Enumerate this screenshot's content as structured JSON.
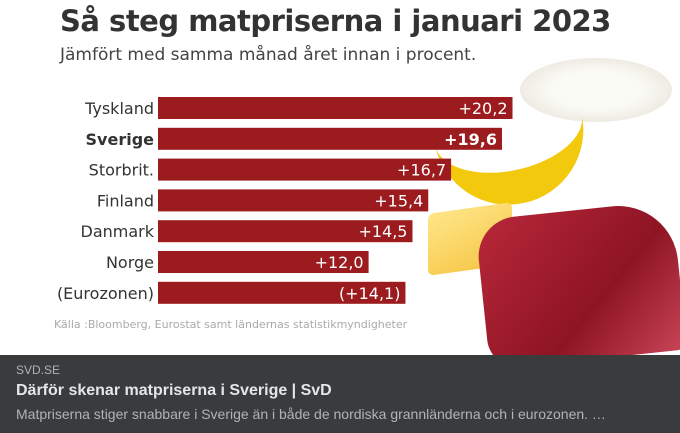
{
  "preview": {
    "domain": "SVD.SE",
    "headline": "Därför skenar matpriserna i Sverige | SvD",
    "description": "Matpriserna stiger snabbare i Sverige än i både de nordiska grannländerna och i eurozonen. …"
  },
  "chart_data": {
    "type": "bar",
    "orientation": "horizontal",
    "title": "Så steg matpriserna i januari 2023",
    "subtitle": "Jämfört med samma månad året innan i procent.",
    "source": "Källa :Bloomberg, Eurostat samt ländernas statistikmyndigheter",
    "categories": [
      "Tyskland",
      "Sverige",
      "Storbrit.",
      "Finland",
      "Danmark",
      "Norge",
      "(Eurozonen)"
    ],
    "values": [
      20.2,
      19.6,
      16.7,
      15.4,
      14.5,
      12.0,
      14.1
    ],
    "value_labels": [
      "+20,2",
      "+19,6",
      "+16,7",
      "+15,4",
      "+14,5",
      "+12,0",
      "(+14,1)"
    ],
    "highlighted_category": "Sverige",
    "bar_color": "#9b1b1e",
    "grid": false
  }
}
